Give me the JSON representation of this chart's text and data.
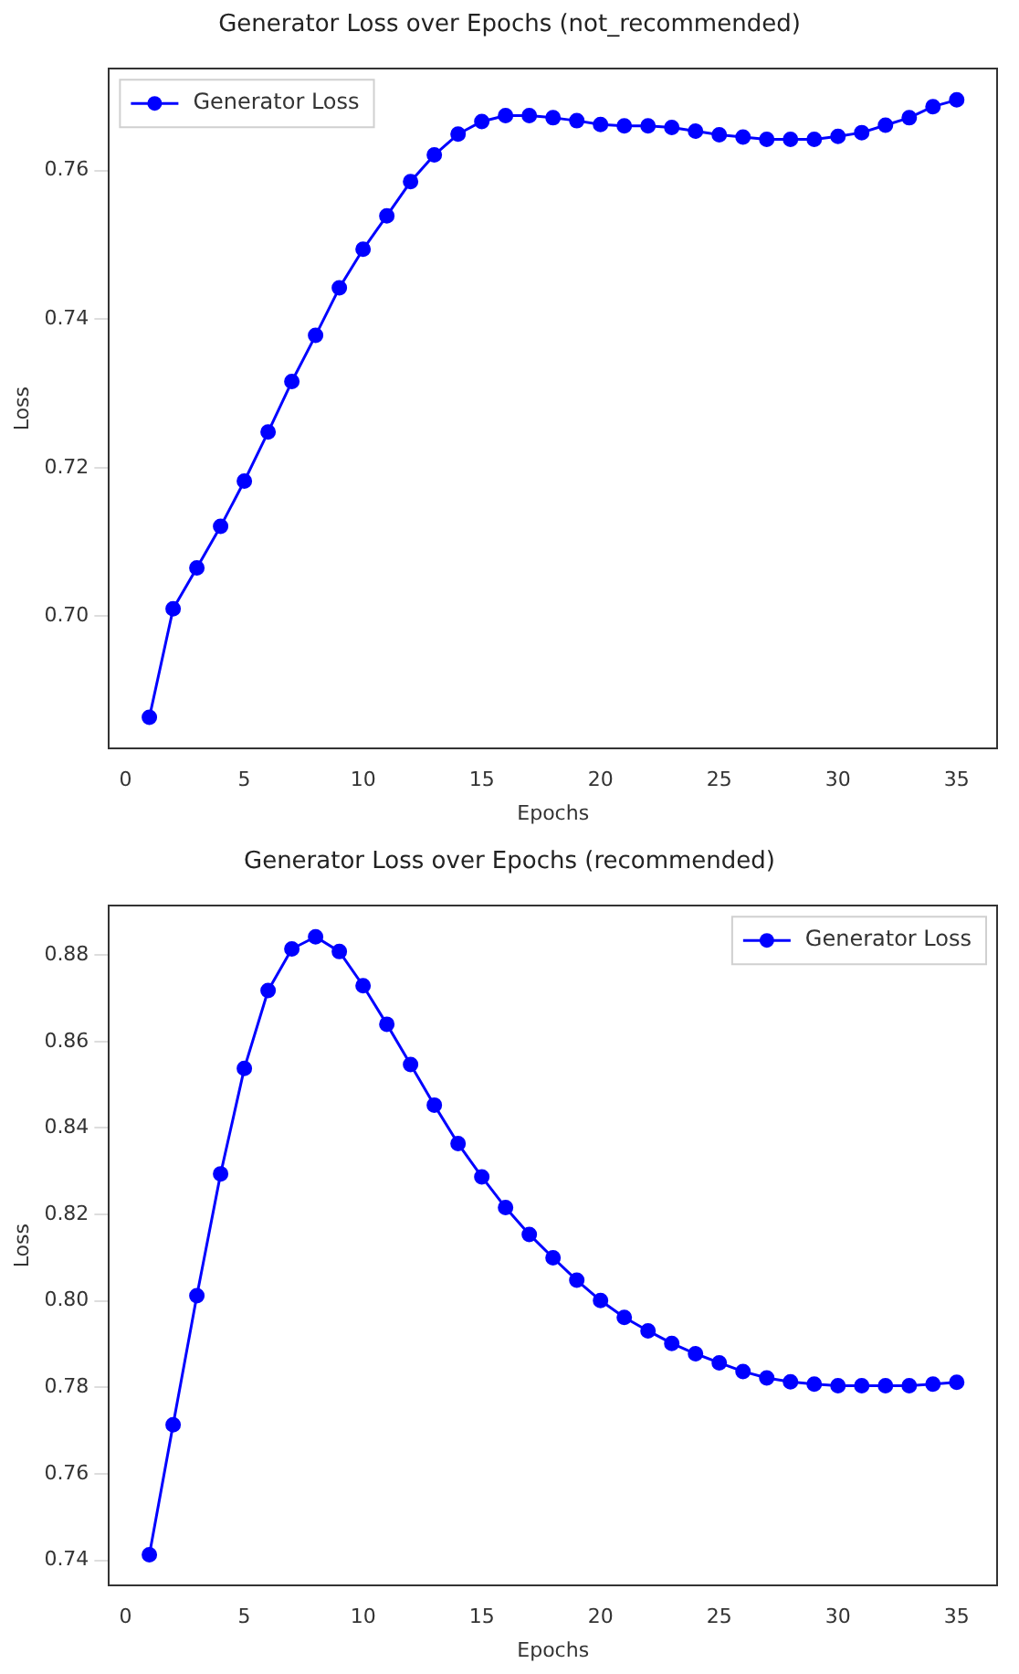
{
  "chart_data": [
    {
      "type": "line",
      "title": "Generator Loss over Epochs (not_recommended)",
      "xlabel": "Epochs",
      "ylabel": "Loss",
      "x": [
        1,
        2,
        3,
        4,
        5,
        6,
        7,
        8,
        9,
        10,
        11,
        12,
        13,
        14,
        15,
        16,
        17,
        18,
        19,
        20,
        21,
        22,
        23,
        24,
        25,
        26,
        27,
        28,
        29,
        30,
        31,
        32,
        33,
        34,
        35
      ],
      "series": [
        {
          "name": "Generator Loss",
          "color": "#0000ff",
          "values": [
            0.6864,
            0.701,
            0.7065,
            0.7121,
            0.7182,
            0.7248,
            0.7316,
            0.7378,
            0.7442,
            0.7494,
            0.7539,
            0.7585,
            0.7621,
            0.7649,
            0.7666,
            0.7674,
            0.7674,
            0.7671,
            0.7667,
            0.7662,
            0.766,
            0.766,
            0.7658,
            0.7653,
            0.7648,
            0.7645,
            0.7642,
            0.7642,
            0.7642,
            0.7646,
            0.7651,
            0.7661,
            0.7671,
            0.7686,
            0.7695
          ]
        }
      ],
      "xlim": [
        -0.7,
        36.7
      ],
      "xticks": [
        0,
        5,
        10,
        15,
        20,
        25,
        30,
        35
      ],
      "ylim": [
        0.6822,
        0.7737
      ],
      "yticks": [
        {
          "value": 0.7,
          "label": "0.70"
        },
        {
          "value": 0.72,
          "label": "0.72"
        },
        {
          "value": 0.74,
          "label": "0.74"
        },
        {
          "value": 0.76,
          "label": "0.76"
        }
      ],
      "legend": "top left",
      "marker": "circle",
      "line_style": "solid"
    },
    {
      "type": "line",
      "title": "Generator Loss over Epochs (recommended)",
      "xlabel": "Epochs",
      "ylabel": "Loss",
      "x": [
        1,
        2,
        3,
        4,
        5,
        6,
        7,
        8,
        9,
        10,
        11,
        12,
        13,
        14,
        15,
        16,
        17,
        18,
        19,
        20,
        21,
        22,
        23,
        24,
        25,
        26,
        27,
        28,
        29,
        30,
        31,
        32,
        33,
        34,
        35
      ],
      "series": [
        {
          "name": "Generator Loss",
          "color": "#0000ff",
          "values": [
            0.7413,
            0.7714,
            0.8012,
            0.8294,
            0.8538,
            0.8718,
            0.8814,
            0.8842,
            0.8808,
            0.8729,
            0.864,
            0.8547,
            0.8453,
            0.8364,
            0.8287,
            0.8216,
            0.8154,
            0.81,
            0.8048,
            0.8001,
            0.7962,
            0.7931,
            0.7902,
            0.7878,
            0.7857,
            0.7837,
            0.7822,
            0.7813,
            0.7808,
            0.7804,
            0.7804,
            0.7804,
            0.7804,
            0.7808,
            0.7812
          ]
        }
      ],
      "xlim": [
        -0.7,
        36.7
      ],
      "xticks": [
        0,
        5,
        10,
        15,
        20,
        25,
        30,
        35
      ],
      "ylim": [
        0.7342,
        0.8914
      ],
      "yticks": [
        {
          "value": 0.74,
          "label": "0.74"
        },
        {
          "value": 0.76,
          "label": "0.76"
        },
        {
          "value": 0.78,
          "label": "0.78"
        },
        {
          "value": 0.8,
          "label": "0.80"
        },
        {
          "value": 0.82,
          "label": "0.82"
        },
        {
          "value": 0.84,
          "label": "0.84"
        },
        {
          "value": 0.86,
          "label": "0.86"
        },
        {
          "value": 0.88,
          "label": "0.88"
        }
      ],
      "legend": "top right",
      "marker": "circle",
      "line_style": "solid"
    }
  ]
}
